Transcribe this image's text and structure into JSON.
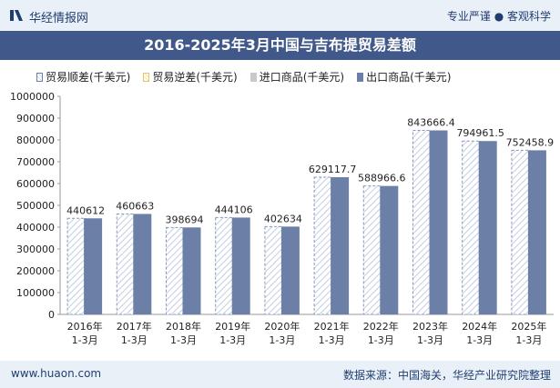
{
  "header": {
    "brand": "华经情报网",
    "tagline": "专业严谨 ● 客观科学",
    "title": "2016-2025年3月中国与吉布提贸易差额"
  },
  "footer": {
    "site": "www.huaon.com",
    "source": "数据来源：中国海关，华经产业研究院整理"
  },
  "colors": {
    "export_bar": "#6c7fa7",
    "balance_hatch": "#6c80b0",
    "title_bg": "#41598a"
  },
  "chart_data": {
    "type": "bar",
    "categories": [
      "2016年\n1-3月",
      "2017年\n1-3月",
      "2018年\n1-3月",
      "2019年\n1-3月",
      "2020年\n1-3月",
      "2021年\n1-3月",
      "2022年\n1-3月",
      "2023年\n1-3月",
      "2024年\n1-3月",
      "2025年\n1-3月"
    ],
    "series": [
      {
        "name": "贸易顺差(千美元)",
        "values": [
          440612,
          460663,
          398694,
          444106,
          402634,
          629117.7,
          588966.6,
          843666.4,
          794961.5,
          752458.9
        ],
        "labels": [
          "440612",
          "460663",
          "398694",
          "444106",
          "402634",
          "629117.7",
          "588966.6",
          "843666.4",
          "794961.5",
          "752458.9"
        ]
      },
      {
        "name": "贸易逆差(千美元)",
        "values": [
          0,
          0,
          0,
          0,
          0,
          0,
          0,
          0,
          0,
          0
        ]
      },
      {
        "name": "进口商品(千美元)",
        "values": [
          0,
          0,
          0,
          0,
          0,
          0,
          0,
          0,
          0,
          0
        ]
      },
      {
        "name": "出口商品(千美元)",
        "values": [
          440612,
          460663,
          398694,
          444106,
          402634,
          629117.7,
          588966.6,
          843666.4,
          794961.5,
          752458.9
        ]
      }
    ],
    "ylim": [
      0,
      1000000
    ],
    "yticks": [
      "0",
      "100000",
      "200000",
      "300000",
      "400000",
      "500000",
      "600000",
      "700000",
      "800000",
      "900000",
      "1000000"
    ],
    "legend_position": "top",
    "grid": false
  }
}
